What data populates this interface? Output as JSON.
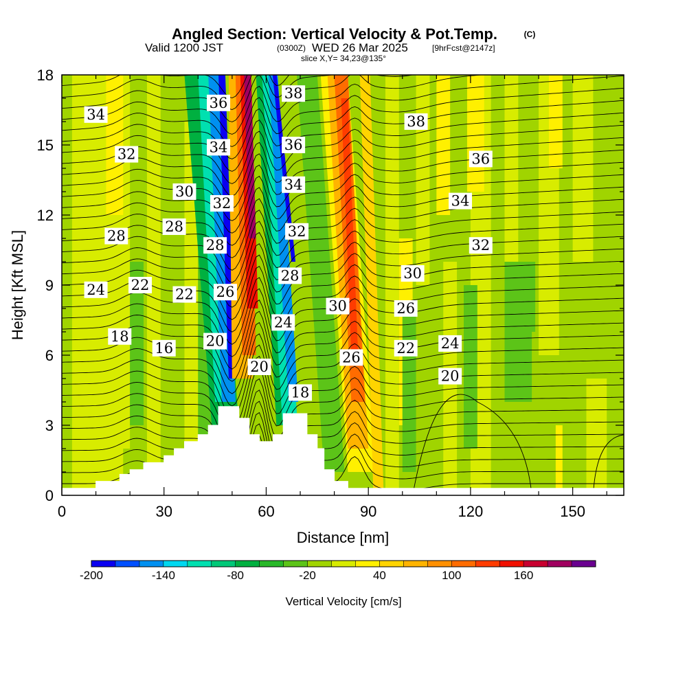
{
  "header": {
    "title": "Angled Section: Vertical Velocity & Pot.Temp.",
    "title_tag": "(C)",
    "subtitle_a": "Valid 1200 JST",
    "subtitle_b": "(0300Z)",
    "subtitle_c": "WED 26 Mar 2025",
    "subtitle_d": "[9hrFcst@2147z]",
    "slice": "slice X,Y= 34,23@135°"
  },
  "chart_data": {
    "type": "heatmap",
    "title": "Angled Section: Vertical Velocity & Pot.Temp.",
    "xlabel": "Distance [nm]",
    "ylabel": "Height [Kft MSL]",
    "xlim": [
      0,
      165
    ],
    "ylim": [
      0,
      18
    ],
    "x_ticks": [
      0,
      30,
      60,
      90,
      120,
      150
    ],
    "y_ticks": [
      0,
      3,
      6,
      9,
      12,
      15,
      18
    ],
    "colorbar": {
      "label": "Vertical Velocity [cm/s]",
      "range": [
        -200,
        190
      ],
      "step": 20,
      "tick_labels": [
        -200,
        -140,
        -80,
        -20,
        40,
        100,
        160
      ],
      "colors": [
        "#0a00f0",
        "#0050ff",
        "#0090f0",
        "#00d8f0",
        "#00e0b0",
        "#00c878",
        "#00b040",
        "#28b828",
        "#5cc418",
        "#a0d400",
        "#d8ec00",
        "#fff000",
        "#ffd400",
        "#ffb400",
        "#ff9000",
        "#ff6c00",
        "#ff3c00",
        "#f01000",
        "#c80030",
        "#a00060",
        "#6a0090"
      ]
    },
    "terrain_kft": [
      [
        0,
        0.3
      ],
      [
        10,
        0.3
      ],
      [
        10,
        0.6
      ],
      [
        17,
        0.6
      ],
      [
        17,
        0.9
      ],
      [
        20,
        0.9
      ],
      [
        20,
        1.1
      ],
      [
        24,
        1.1
      ],
      [
        24,
        1.4
      ],
      [
        30,
        1.4
      ],
      [
        30,
        1.7
      ],
      [
        33,
        1.7
      ],
      [
        33,
        2.0
      ],
      [
        36,
        2.0
      ],
      [
        36,
        2.3
      ],
      [
        40,
        2.3
      ],
      [
        40,
        2.6
      ],
      [
        43,
        2.6
      ],
      [
        43,
        3.0
      ],
      [
        46,
        3.0
      ],
      [
        46,
        3.8
      ],
      [
        52,
        3.8
      ],
      [
        52,
        3.3
      ],
      [
        55,
        3.3
      ],
      [
        55,
        2.6
      ],
      [
        58,
        2.6
      ],
      [
        58,
        2.3
      ],
      [
        62,
        2.3
      ],
      [
        62,
        2.6
      ],
      [
        65,
        2.6
      ],
      [
        65,
        3.5
      ],
      [
        72,
        3.5
      ],
      [
        72,
        2.6
      ],
      [
        75,
        2.6
      ],
      [
        75,
        2.0
      ],
      [
        77,
        2.0
      ],
      [
        77,
        1.1
      ],
      [
        80,
        1.1
      ],
      [
        80,
        0.6
      ],
      [
        84,
        0.6
      ],
      [
        84,
        0.3
      ],
      [
        90,
        0.3
      ],
      [
        165,
        0.3
      ]
    ],
    "velocity_bands": [
      {
        "x": 47.5,
        "y": [
          0,
          18
        ],
        "width_nm": 4,
        "value": -140
      },
      {
        "x": 49.5,
        "y": [
          3,
          18
        ],
        "width_nm": 2,
        "value": -200
      },
      {
        "x": 56,
        "y": [
          5,
          18
        ],
        "width_nm": 5,
        "value": 120
      },
      {
        "x": 57,
        "y": [
          9,
          18
        ],
        "width_nm": 2,
        "value": 180
      },
      {
        "x": 68,
        "y": [
          3,
          18
        ],
        "width_nm": 4,
        "value": -140
      },
      {
        "x": 87,
        "y": [
          4,
          18
        ],
        "width_nm": 5,
        "value": 100
      }
    ],
    "theta_labels": [
      {
        "text": "34",
        "x": 10,
        "y": 16.3
      },
      {
        "text": "32",
        "x": 19,
        "y": 14.6
      },
      {
        "text": "30",
        "x": 36,
        "y": 13.0
      },
      {
        "text": "28",
        "x": 16,
        "y": 11.1
      },
      {
        "text": "28",
        "x": 33,
        "y": 11.5
      },
      {
        "text": "24",
        "x": 10,
        "y": 8.8
      },
      {
        "text": "22",
        "x": 23,
        "y": 9.0
      },
      {
        "text": "22",
        "x": 36,
        "y": 8.6
      },
      {
        "text": "18",
        "x": 17,
        "y": 6.8
      },
      {
        "text": "16",
        "x": 30,
        "y": 6.3
      },
      {
        "text": "36",
        "x": 46,
        "y": 16.8
      },
      {
        "text": "34",
        "x": 46,
        "y": 14.9
      },
      {
        "text": "32",
        "x": 47,
        "y": 12.5
      },
      {
        "text": "28",
        "x": 45,
        "y": 10.7
      },
      {
        "text": "26",
        "x": 48,
        "y": 8.7
      },
      {
        "text": "20",
        "x": 45,
        "y": 6.6
      },
      {
        "text": "20",
        "x": 58,
        "y": 5.5
      },
      {
        "text": "38",
        "x": 68,
        "y": 17.2
      },
      {
        "text": "36",
        "x": 68,
        "y": 15.0
      },
      {
        "text": "34",
        "x": 68,
        "y": 13.3
      },
      {
        "text": "32",
        "x": 69,
        "y": 11.3
      },
      {
        "text": "28",
        "x": 67,
        "y": 9.4
      },
      {
        "text": "24",
        "x": 65,
        "y": 7.4
      },
      {
        "text": "18",
        "x": 70,
        "y": 4.4
      },
      {
        "text": "30",
        "x": 81,
        "y": 8.1
      },
      {
        "text": "26",
        "x": 85,
        "y": 5.9
      },
      {
        "text": "38",
        "x": 104,
        "y": 16.0
      },
      {
        "text": "36",
        "x": 123,
        "y": 14.4
      },
      {
        "text": "34",
        "x": 117,
        "y": 12.6
      },
      {
        "text": "32",
        "x": 123,
        "y": 10.7
      },
      {
        "text": "30",
        "x": 103,
        "y": 9.5
      },
      {
        "text": "26",
        "x": 101,
        "y": 8.0
      },
      {
        "text": "22",
        "x": 101,
        "y": 6.3
      },
      {
        "text": "24",
        "x": 114,
        "y": 6.5
      },
      {
        "text": "20",
        "x": 114,
        "y": 5.1
      }
    ]
  }
}
